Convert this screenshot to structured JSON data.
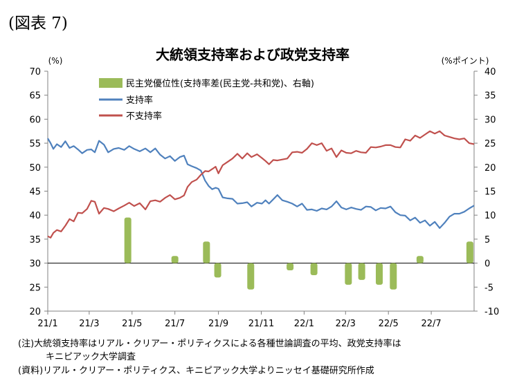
{
  "figure_label": "(図表 7)",
  "notes": {
    "note1": "(注)大統領支持率はリアル・クリアー・ポリティクスによる各種世論調査の平均、政党支持率は",
    "note2": "キニピアック大学調査",
    "source": "(資料)リアル・クリアー・ポリティクス、キニピアック大学よりニッセイ基礎研究所作成"
  },
  "chart_data": {
    "type": "line",
    "title": "大統領支持率および政党支持率",
    "left_unit": "(%)",
    "right_unit": "(%ポイント)",
    "ylim": [
      20,
      70
    ],
    "y_ticks": [
      20,
      25,
      30,
      35,
      40,
      45,
      50,
      55,
      60,
      65,
      70
    ],
    "y2lim": [
      -10,
      40
    ],
    "y2_ticks": [
      -10,
      -5,
      0,
      5,
      10,
      15,
      20,
      25,
      30,
      35,
      40
    ],
    "xlim": [
      "2021-01-01",
      "2022-08-31"
    ],
    "x_ticks": [
      {
        "label": "21/1",
        "date": "2021-01-01"
      },
      {
        "label": "21/3",
        "date": "2021-03-01"
      },
      {
        "label": "21/5",
        "date": "2021-05-01"
      },
      {
        "label": "21/7",
        "date": "2021-07-01"
      },
      {
        "label": "21/9",
        "date": "2021-09-01"
      },
      {
        "label": "21/11",
        "date": "2021-11-01"
      },
      {
        "label": "22/1",
        "date": "2022-01-01"
      },
      {
        "label": "22/3",
        "date": "2022-03-01"
      },
      {
        "label": "22/5",
        "date": "2022-05-01"
      },
      {
        "label": "22/7",
        "date": "2022-07-01"
      }
    ],
    "grid": false,
    "legend_position": "top-left",
    "colors": {
      "bar": "#9bbb59",
      "approve": "#4f81bd",
      "disapprove": "#c0504d"
    },
    "bars": {
      "name": "民主党優位性(支持率差(民主党-共和党)、右軸)",
      "axis": "right",
      "points": [
        {
          "date": "2021-04-25",
          "value": 9.5
        },
        {
          "date": "2021-07-01",
          "value": 1.5
        },
        {
          "date": "2021-08-15",
          "value": 4.5
        },
        {
          "date": "2021-08-31",
          "value": -3
        },
        {
          "date": "2021-10-17",
          "value": -5.5
        },
        {
          "date": "2021-12-12",
          "value": -1.5
        },
        {
          "date": "2022-01-15",
          "value": -2.5
        },
        {
          "date": "2022-03-05",
          "value": -4.5
        },
        {
          "date": "2022-03-24",
          "value": -3.5
        },
        {
          "date": "2022-04-18",
          "value": -4.5
        },
        {
          "date": "2022-05-08",
          "value": -5.5
        },
        {
          "date": "2022-06-15",
          "value": 1.5
        },
        {
          "date": "2022-08-25",
          "value": 4.5
        }
      ]
    },
    "series": [
      {
        "name": "支持率",
        "axis": "left",
        "points": [
          [
            "2021-01-01",
            56.0
          ],
          [
            "2021-01-05",
            55.0
          ],
          [
            "2021-01-09",
            53.8
          ],
          [
            "2021-01-14",
            54.8
          ],
          [
            "2021-01-20",
            54.2
          ],
          [
            "2021-01-26",
            55.4
          ],
          [
            "2021-02-01",
            54.0
          ],
          [
            "2021-02-07",
            54.4
          ],
          [
            "2021-02-13",
            53.7
          ],
          [
            "2021-02-19",
            52.9
          ],
          [
            "2021-02-26",
            53.6
          ],
          [
            "2021-03-04",
            53.7
          ],
          [
            "2021-03-09",
            53.1
          ],
          [
            "2021-03-15",
            55.5
          ],
          [
            "2021-03-22",
            54.7
          ],
          [
            "2021-03-28",
            53.1
          ],
          [
            "2021-04-05",
            53.8
          ],
          [
            "2021-04-12",
            54.0
          ],
          [
            "2021-04-20",
            53.6
          ],
          [
            "2021-04-27",
            54.4
          ],
          [
            "2021-05-04",
            53.8
          ],
          [
            "2021-05-12",
            53.3
          ],
          [
            "2021-05-20",
            53.9
          ],
          [
            "2021-05-27",
            53.1
          ],
          [
            "2021-06-03",
            53.9
          ],
          [
            "2021-06-10",
            52.6
          ],
          [
            "2021-06-17",
            51.8
          ],
          [
            "2021-06-24",
            52.3
          ],
          [
            "2021-07-01",
            51.3
          ],
          [
            "2021-07-08",
            52.1
          ],
          [
            "2021-07-14",
            52.4
          ],
          [
            "2021-07-19",
            50.6
          ],
          [
            "2021-07-25",
            50.2
          ],
          [
            "2021-08-01",
            49.8
          ],
          [
            "2021-08-07",
            49.3
          ],
          [
            "2021-08-13",
            47.2
          ],
          [
            "2021-08-18",
            46.1
          ],
          [
            "2021-08-23",
            45.4
          ],
          [
            "2021-08-28",
            45.7
          ],
          [
            "2021-09-01",
            45.5
          ],
          [
            "2021-09-07",
            43.7
          ],
          [
            "2021-09-14",
            43.5
          ],
          [
            "2021-09-21",
            43.4
          ],
          [
            "2021-09-28",
            42.4
          ],
          [
            "2021-10-05",
            42.5
          ],
          [
            "2021-10-12",
            42.7
          ],
          [
            "2021-10-18",
            41.8
          ],
          [
            "2021-10-26",
            42.6
          ],
          [
            "2021-11-02",
            42.4
          ],
          [
            "2021-11-07",
            43.1
          ],
          [
            "2021-11-12",
            42.4
          ],
          [
            "2021-11-18",
            43.3
          ],
          [
            "2021-11-24",
            44.2
          ],
          [
            "2021-12-01",
            43.1
          ],
          [
            "2021-12-08",
            42.8
          ],
          [
            "2021-12-15",
            42.4
          ],
          [
            "2021-12-22",
            41.8
          ],
          [
            "2021-12-29",
            42.4
          ],
          [
            "2022-01-05",
            41.1
          ],
          [
            "2022-01-12",
            41.2
          ],
          [
            "2022-01-19",
            40.9
          ],
          [
            "2022-01-26",
            41.4
          ],
          [
            "2022-02-02",
            41.2
          ],
          [
            "2022-02-09",
            41.8
          ],
          [
            "2022-02-16",
            42.9
          ],
          [
            "2022-02-23",
            41.6
          ],
          [
            "2022-03-02",
            41.2
          ],
          [
            "2022-03-09",
            41.6
          ],
          [
            "2022-03-16",
            41.3
          ],
          [
            "2022-03-23",
            41.1
          ],
          [
            "2022-03-30",
            41.8
          ],
          [
            "2022-04-06",
            41.7
          ],
          [
            "2022-04-13",
            41.0
          ],
          [
            "2022-04-20",
            41.5
          ],
          [
            "2022-04-27",
            41.4
          ],
          [
            "2022-05-04",
            41.8
          ],
          [
            "2022-05-11",
            40.6
          ],
          [
            "2022-05-18",
            40.0
          ],
          [
            "2022-05-25",
            39.9
          ],
          [
            "2022-06-01",
            38.9
          ],
          [
            "2022-06-08",
            39.5
          ],
          [
            "2022-06-15",
            38.4
          ],
          [
            "2022-06-22",
            38.9
          ],
          [
            "2022-06-29",
            37.8
          ],
          [
            "2022-07-06",
            38.6
          ],
          [
            "2022-07-13",
            37.3
          ],
          [
            "2022-07-20",
            38.4
          ],
          [
            "2022-07-27",
            39.7
          ],
          [
            "2022-08-03",
            40.3
          ],
          [
            "2022-08-10",
            40.3
          ],
          [
            "2022-08-17",
            40.7
          ],
          [
            "2022-08-24",
            41.4
          ],
          [
            "2022-08-31",
            42.0
          ]
        ]
      },
      {
        "name": "不支持率",
        "axis": "left",
        "points": [
          [
            "2021-01-01",
            35.6
          ],
          [
            "2021-01-05",
            35.3
          ],
          [
            "2021-01-09",
            36.3
          ],
          [
            "2021-01-14",
            36.9
          ],
          [
            "2021-01-20",
            36.6
          ],
          [
            "2021-01-26",
            37.8
          ],
          [
            "2021-02-01",
            39.2
          ],
          [
            "2021-02-07",
            38.7
          ],
          [
            "2021-02-13",
            40.5
          ],
          [
            "2021-02-19",
            40.4
          ],
          [
            "2021-02-26",
            41.3
          ],
          [
            "2021-03-04",
            43.0
          ],
          [
            "2021-03-09",
            42.8
          ],
          [
            "2021-03-15",
            40.3
          ],
          [
            "2021-03-22",
            41.5
          ],
          [
            "2021-03-28",
            41.3
          ],
          [
            "2021-04-05",
            40.8
          ],
          [
            "2021-04-12",
            41.4
          ],
          [
            "2021-04-20",
            42.0
          ],
          [
            "2021-04-27",
            42.6
          ],
          [
            "2021-05-04",
            41.9
          ],
          [
            "2021-05-12",
            42.5
          ],
          [
            "2021-05-20",
            41.2
          ],
          [
            "2021-05-27",
            42.9
          ],
          [
            "2021-06-03",
            43.1
          ],
          [
            "2021-06-10",
            42.8
          ],
          [
            "2021-06-17",
            43.6
          ],
          [
            "2021-06-24",
            44.2
          ],
          [
            "2021-07-01",
            43.3
          ],
          [
            "2021-07-08",
            43.6
          ],
          [
            "2021-07-14",
            44.1
          ],
          [
            "2021-07-19",
            45.9
          ],
          [
            "2021-07-25",
            46.9
          ],
          [
            "2021-08-01",
            47.4
          ],
          [
            "2021-08-07",
            48.4
          ],
          [
            "2021-08-13",
            49.2
          ],
          [
            "2021-08-18",
            49.1
          ],
          [
            "2021-08-23",
            49.6
          ],
          [
            "2021-08-28",
            50.1
          ],
          [
            "2021-09-01",
            48.7
          ],
          [
            "2021-09-07",
            50.4
          ],
          [
            "2021-09-14",
            51.1
          ],
          [
            "2021-09-21",
            51.8
          ],
          [
            "2021-09-28",
            52.8
          ],
          [
            "2021-10-05",
            51.8
          ],
          [
            "2021-10-12",
            52.9
          ],
          [
            "2021-10-18",
            52.1
          ],
          [
            "2021-10-26",
            52.7
          ],
          [
            "2021-11-02",
            51.9
          ],
          [
            "2021-11-07",
            51.3
          ],
          [
            "2021-11-12",
            50.6
          ],
          [
            "2021-11-18",
            51.5
          ],
          [
            "2021-11-24",
            51.4
          ],
          [
            "2021-12-01",
            51.6
          ],
          [
            "2021-12-08",
            51.8
          ],
          [
            "2021-12-15",
            53.1
          ],
          [
            "2021-12-22",
            53.2
          ],
          [
            "2021-12-29",
            53.0
          ],
          [
            "2022-01-05",
            53.8
          ],
          [
            "2022-01-12",
            55.0
          ],
          [
            "2022-01-19",
            54.6
          ],
          [
            "2022-01-26",
            55.0
          ],
          [
            "2022-02-02",
            53.4
          ],
          [
            "2022-02-09",
            53.9
          ],
          [
            "2022-02-16",
            52.1
          ],
          [
            "2022-02-23",
            53.5
          ],
          [
            "2022-03-02",
            53.0
          ],
          [
            "2022-03-09",
            52.9
          ],
          [
            "2022-03-16",
            53.4
          ],
          [
            "2022-03-23",
            53.1
          ],
          [
            "2022-03-30",
            53.0
          ],
          [
            "2022-04-06",
            54.2
          ],
          [
            "2022-04-13",
            54.1
          ],
          [
            "2022-04-20",
            54.3
          ],
          [
            "2022-04-27",
            54.6
          ],
          [
            "2022-05-04",
            54.6
          ],
          [
            "2022-05-11",
            54.2
          ],
          [
            "2022-05-18",
            54.1
          ],
          [
            "2022-05-25",
            55.8
          ],
          [
            "2022-06-01",
            55.5
          ],
          [
            "2022-06-08",
            56.6
          ],
          [
            "2022-06-15",
            56.1
          ],
          [
            "2022-06-22",
            56.8
          ],
          [
            "2022-06-29",
            57.5
          ],
          [
            "2022-07-06",
            57.0
          ],
          [
            "2022-07-13",
            57.5
          ],
          [
            "2022-07-20",
            56.6
          ],
          [
            "2022-07-27",
            56.3
          ],
          [
            "2022-08-03",
            56.0
          ],
          [
            "2022-08-10",
            55.8
          ],
          [
            "2022-08-17",
            56.0
          ],
          [
            "2022-08-24",
            55.0
          ],
          [
            "2022-08-31",
            54.8
          ]
        ]
      }
    ]
  }
}
